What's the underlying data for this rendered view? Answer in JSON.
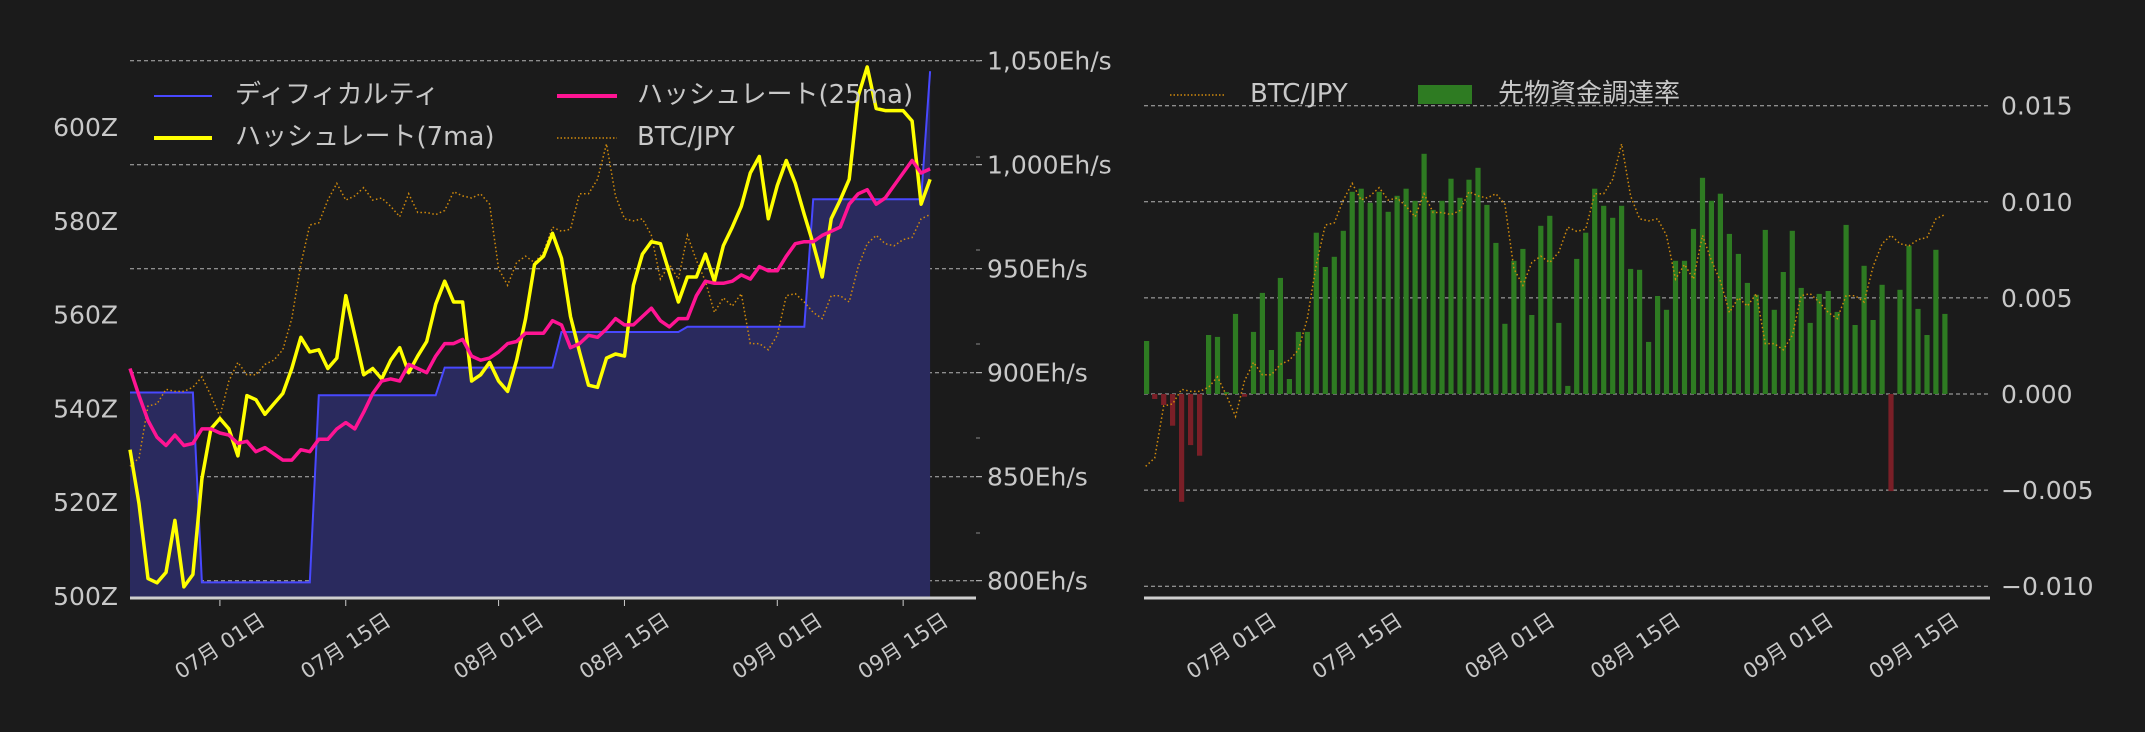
{
  "colors": {
    "background": "#1b1b1b",
    "difficulty": "#4848ff",
    "difficulty_fill": "#2a2a5e",
    "hashrate_7ma": "#ffff00",
    "hashrate_25ma": "#ff1493",
    "btc_jpy": "#d08a0c",
    "funding_positive": "#2e7b22",
    "funding_negative": "#7a1f27",
    "grid": "#d0d0d0"
  },
  "chart_data": [
    {
      "type": "line",
      "dates": [
        "06-21",
        "06-22",
        "06-23",
        "06-24",
        "06-25",
        "06-26",
        "06-27",
        "06-28",
        "06-29",
        "06-30",
        "07-01",
        "07-02",
        "07-03",
        "07-04",
        "07-05",
        "07-06",
        "07-07",
        "07-08",
        "07-09",
        "07-10",
        "07-11",
        "07-12",
        "07-13",
        "07-14",
        "07-15",
        "07-16",
        "07-17",
        "07-18",
        "07-19",
        "07-20",
        "07-21",
        "07-22",
        "07-23",
        "07-24",
        "07-25",
        "07-26",
        "07-27",
        "07-28",
        "07-29",
        "07-30",
        "07-31",
        "08-01",
        "08-02",
        "08-03",
        "08-04",
        "08-05",
        "08-06",
        "08-07",
        "08-08",
        "08-09",
        "08-10",
        "08-11",
        "08-12",
        "08-13",
        "08-14",
        "08-15",
        "08-16",
        "08-17",
        "08-18",
        "08-19",
        "08-20",
        "08-21",
        "08-22",
        "08-23",
        "08-24",
        "08-25",
        "08-26",
        "08-27",
        "08-28",
        "08-29",
        "08-30",
        "08-31",
        "09-01",
        "09-02",
        "09-03",
        "09-04",
        "09-05",
        "09-06",
        "09-07",
        "09-08",
        "09-09",
        "09-10",
        "09-11",
        "09-12",
        "09-13",
        "09-14",
        "09-15",
        "09-16",
        "09-17",
        "09-18"
      ],
      "x_ticks": [
        {
          "date": "07-01",
          "label": "07月 01日"
        },
        {
          "date": "07-15",
          "label": "07月 15日"
        },
        {
          "date": "08-01",
          "label": "08月 01日"
        },
        {
          "date": "08-15",
          "label": "08月 15日"
        },
        {
          "date": "09-01",
          "label": "09月 01日"
        },
        {
          "date": "09-15",
          "label": "09月 15日"
        }
      ],
      "left_axis": {
        "ticks": [
          "600Z",
          "580Z",
          "560Z",
          "540Z",
          "520Z",
          "500Z"
        ],
        "values": [
          600,
          580,
          560,
          540,
          520,
          500
        ],
        "ylim": [
          499.6,
          614
        ]
      },
      "right_axis": {
        "ticks": [
          "1,050Eh/s",
          "1,000Eh/s",
          "950Eh/s",
          "900Eh/s",
          "850Eh/s",
          "800Eh/s"
        ],
        "values": [
          1050,
          1000,
          950,
          900,
          850,
          800
        ],
        "ylim": [
          791.7,
          1055
        ]
      },
      "grid": true,
      "legend_placement": "top-left",
      "series": [
        {
          "name": "ディフィカルティ",
          "axis": "left",
          "style": "line-filled",
          "values": [
            543.4,
            543.4,
            543.4,
            543.4,
            543.4,
            543.4,
            543.4,
            543.4,
            502.9,
            502.9,
            502.9,
            502.9,
            502.9,
            502.9,
            502.9,
            502.9,
            502.9,
            502.9,
            502.9,
            502.9,
            502.9,
            542.8,
            542.8,
            542.8,
            542.8,
            542.8,
            542.8,
            542.8,
            542.8,
            542.8,
            542.8,
            542.8,
            542.8,
            542.8,
            542.8,
            548.7,
            548.7,
            548.7,
            548.7,
            548.7,
            548.7,
            548.7,
            548.7,
            548.7,
            548.7,
            548.7,
            548.7,
            548.7,
            556.3,
            556.3,
            556.3,
            556.3,
            556.3,
            556.3,
            556.3,
            556.3,
            556.3,
            556.3,
            556.3,
            556.3,
            556.3,
            556.3,
            557.4,
            557.4,
            557.4,
            557.4,
            557.4,
            557.4,
            557.4,
            557.4,
            557.4,
            557.4,
            557.4,
            557.4,
            557.4,
            557.4,
            584.6,
            584.6,
            584.6,
            584.6,
            584.6,
            584.6,
            584.6,
            584.6,
            584.6,
            584.6,
            584.6,
            584.6,
            584.6,
            611.9
          ]
        },
        {
          "name": "ハッシュレート(7ma)",
          "axis": "right",
          "style": "line",
          "values": [
            863,
            837,
            801,
            799,
            804,
            829,
            797,
            803,
            849,
            873,
            878,
            873,
            860,
            889,
            887,
            880,
            885,
            890,
            902,
            917,
            910,
            911,
            902,
            907,
            937,
            918,
            899,
            902,
            897,
            906,
            912,
            900,
            908,
            915,
            933,
            944,
            934,
            934,
            896,
            899,
            905,
            896,
            891,
            906,
            926,
            952,
            956,
            967,
            955,
            927,
            910,
            894,
            893,
            907,
            909,
            908,
            942,
            957,
            963,
            962,
            948,
            934,
            946,
            946,
            957,
            944,
            961,
            970,
            980,
            996,
            1004,
            974,
            990,
            1002,
            991,
            976,
            962,
            946,
            974,
            983,
            993,
            1033,
            1047,
            1027,
            1026,
            1026,
            1026,
            1021,
            981,
            993
          ]
        },
        {
          "name": "ハッシュレート(25ma)",
          "axis": "right",
          "style": "line",
          "values": [
            902,
            889,
            877,
            869,
            865,
            870,
            865,
            866,
            873,
            873,
            871,
            870,
            866,
            867,
            862,
            864,
            861,
            858,
            858,
            863,
            862,
            868,
            868,
            873,
            876,
            873,
            881,
            890,
            896,
            897,
            896,
            904,
            902,
            900,
            908,
            914,
            914,
            916,
            908,
            906,
            907,
            910,
            914,
            915,
            919,
            919,
            919,
            925,
            923,
            912,
            914,
            918,
            917,
            921,
            926,
            923,
            923,
            927,
            931,
            925,
            922,
            926,
            926,
            937,
            944,
            943,
            943,
            944,
            947,
            945,
            951,
            949,
            949,
            956,
            962,
            963,
            963,
            966,
            968,
            970,
            981,
            986,
            988,
            981,
            984,
            990,
            996,
            1002,
            996,
            998
          ]
        },
        {
          "name": "BTC/JPY",
          "axis": "hidden",
          "style": "dotted",
          "values": [
            855,
            859,
            884,
            885,
            892,
            891,
            891,
            893,
            898,
            889,
            879,
            896,
            905,
            899,
            899,
            904,
            906,
            911,
            926,
            952,
            971,
            972,
            983,
            991,
            983,
            985,
            989,
            983,
            984,
            980,
            975,
            986,
            977,
            977,
            976,
            978,
            987,
            985,
            984,
            986,
            981,
            950,
            942,
            953,
            956,
            953,
            958,
            970,
            968,
            969,
            986,
            986,
            993,
            1010,
            985,
            974,
            973,
            974,
            966,
            945,
            952,
            945,
            966,
            954,
            944,
            929,
            936,
            932,
            938,
            914,
            914,
            911,
            918,
            937,
            938,
            934,
            929,
            926,
            937,
            937,
            934,
            951,
            962,
            966,
            962,
            961,
            964,
            965,
            974,
            976
          ]
        }
      ]
    },
    {
      "type": "bar",
      "right_axis": {
        "ticks": [
          "0.015",
          "0.010",
          "0.005",
          "0.000",
          "−0.005",
          "−0.010"
        ],
        "values": [
          0.015,
          0.01,
          0.005,
          0.0,
          -0.005,
          -0.01
        ],
        "ylim": [
          -0.0106,
          0.0166
        ]
      },
      "grid": true,
      "legend_placement": "top-left",
      "series": [
        {
          "name": "BTC/JPY",
          "style": "dotted",
          "same_as": "BTC/JPY"
        },
        {
          "name": "先物資金調達率",
          "style": "bar",
          "values": [
            0.00276,
            -0.00026,
            -0.00057,
            -0.00165,
            -0.00561,
            -0.00266,
            -0.00321,
            0.00307,
            0.00297,
            0.0001,
            0.00417,
            -0.00014,
            0.00323,
            0.00526,
            0.00229,
            0.00604,
            0.00078,
            0.00323,
            0.00323,
            0.00839,
            0.00661,
            0.00714,
            0.00849,
            0.01052,
            0.01068,
            0.00995,
            0.01052,
            0.00948,
            0.01031,
            0.01068,
            0.01005,
            0.0125,
            0.00958,
            0.01005,
            0.0112,
            0.01021,
            0.01115,
            0.01177,
            0.00984,
            0.00786,
            0.00365,
            0.00693,
            0.00755,
            0.00411,
            0.00875,
            0.00927,
            0.0037,
            0.00042,
            0.00703,
            0.00839,
            0.01068,
            0.00979,
            0.00917,
            0.00979,
            0.00651,
            0.00646,
            0.00271,
            0.0051,
            0.00438,
            0.00693,
            0.00693,
            0.00859,
            0.01125,
            0.01005,
            0.01042,
            0.00833,
            0.00729,
            0.00578,
            0.00516,
            0.00854,
            0.00438,
            0.00635,
            0.00849,
            0.00552,
            0.0037,
            0.00521,
            0.00536,
            0.00427,
            0.0088,
            0.00359,
            0.00667,
            0.00385,
            0.00568,
            -0.00505,
            0.00542,
            0.00771,
            0.00443,
            0.00307,
            0.0075,
            0.00417
          ]
        }
      ]
    }
  ]
}
